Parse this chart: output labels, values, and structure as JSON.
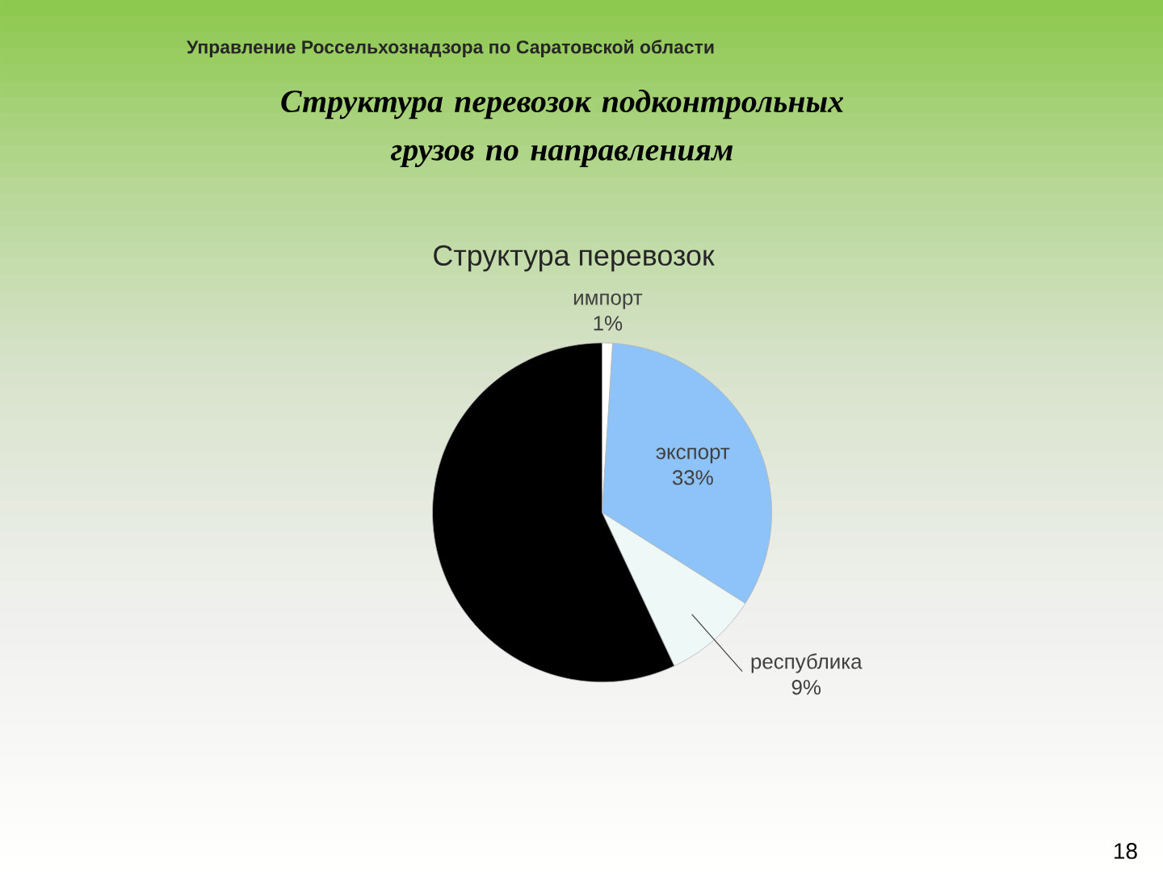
{
  "chart_data": {
    "type": "pie",
    "title": "Структура перевозок подконтрольных грузов по направлениям",
    "subtitle": "Структура перевозок",
    "categories": [
      "импорт",
      "экспорт",
      "республика",
      null
    ],
    "values": [
      1,
      33,
      9,
      57
    ],
    "colors": [
      "#ffffff",
      "#8ec3fa",
      "#eef8f6",
      "#000000"
    ],
    "value_labels": [
      "1%",
      "33%",
      "9%",
      null
    ],
    "annotations": [
      "Управление Россельхознадзора по Саратовской области",
      "18"
    ]
  }
}
